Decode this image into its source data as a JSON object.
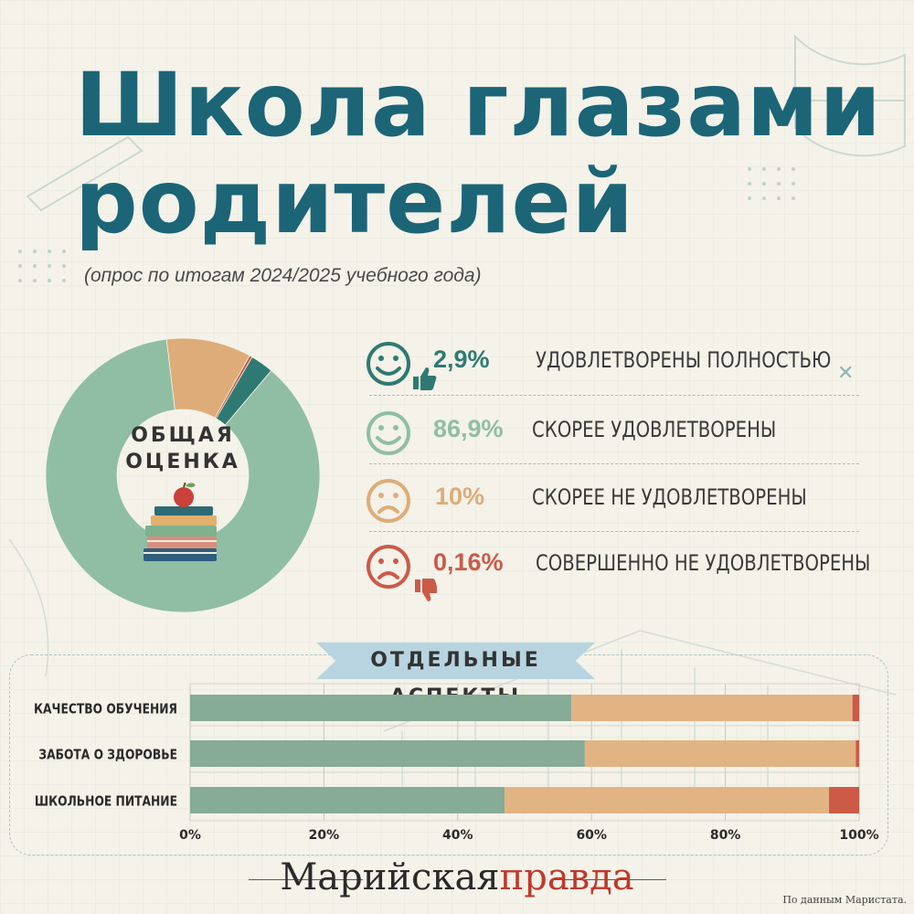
{
  "title": {
    "line1": "Школа глазами",
    "line2": "родителей"
  },
  "subtitle": "(опрос по итогам 2024/2025 учебного года)",
  "overall": {
    "label_line1": "ОБЩАЯ",
    "label_line2": "ОЦЕНКА",
    "items": [
      {
        "pct": "2,9%",
        "label": "УДОВЛЕТВОРЕНЫ ПОЛНОСТЬЮ",
        "icon": "smile-thumbs-up-icon"
      },
      {
        "pct": "86,9%",
        "label": "СКОРЕЕ УДОВЛЕТВОРЕНЫ",
        "icon": "smile-icon"
      },
      {
        "pct": "10%",
        "label": "СКОРЕЕ НЕ УДОВЛЕТВОРЕНЫ",
        "icon": "sad-icon"
      },
      {
        "pct": "0,16%",
        "label": "СОВЕРШЕННО НЕ УДОВЛЕТВОРЕНЫ",
        "icon": "sad-thumbs-down-icon"
      }
    ]
  },
  "aspects_heading": "ОТДЕЛЬНЫЕ АСПЕКТЫ",
  "brand": {
    "part1": "Марийская",
    "part2": "правда"
  },
  "source": "По данным Маристата.",
  "colors": {
    "title": "#1b6577",
    "dark_teal": "#2e7a72",
    "light_green": "#90bea5",
    "tan": "#deac78",
    "red": "#cb5a48",
    "bar_green": "#86ab96",
    "bar_tan": "#e2b383",
    "bar_red": "#cc5a47"
  },
  "chart_data": [
    {
      "type": "pie",
      "title": "ОБЩАЯ ОЦЕНКА",
      "categories": [
        "УДОВЛЕТВОРЕНЫ ПОЛНОСТЬЮ",
        "СКОРЕЕ УДОВЛЕТВОРЕНЫ",
        "СКОРЕЕ НЕ УДОВЛЕТВОРЕНЫ",
        "СОВЕРШЕННО НЕ УДОВЛЕТВОРЕНЫ"
      ],
      "values": [
        2.9,
        86.9,
        10,
        0.16
      ],
      "colors": [
        "#2e7a72",
        "#90bea5",
        "#deac78",
        "#cb5a48"
      ],
      "hole": "donut"
    },
    {
      "type": "bar",
      "orientation": "horizontal",
      "stacked": true,
      "title": "ОТДЕЛЬНЫЕ АСПЕКТЫ",
      "categories": [
        "КАЧЕСТВО ОБУЧЕНИЯ",
        "ЗАБОТА О ЗДОРОВЬЕ",
        "ШКОЛЬНОЕ ПИТАНИЕ"
      ],
      "series": [
        {
          "values": [
            57,
            59,
            47
          ],
          "color": "#86ab96"
        },
        {
          "values": [
            42,
            40.5,
            48.5
          ],
          "color": "#e2b383"
        },
        {
          "values": [
            1,
            0.5,
            4.5
          ],
          "color": "#cc5a47"
        }
      ],
      "xlim": [
        0,
        100
      ],
      "ticks": [
        "0%",
        "20%",
        "40%",
        "60%",
        "80%",
        "100%"
      ],
      "grid": "vertical"
    }
  ]
}
